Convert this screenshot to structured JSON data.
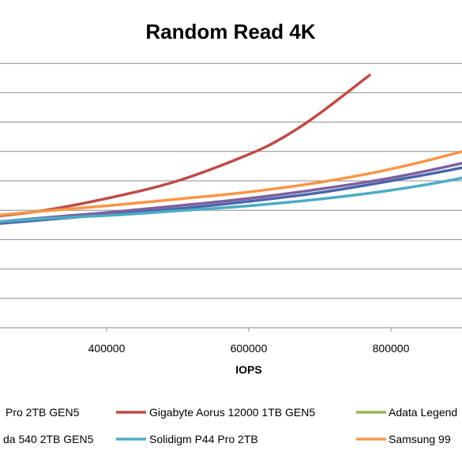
{
  "chart_data": {
    "type": "line",
    "title": "Random Read 4K",
    "xlabel": "IOPS",
    "ylabel": "",
    "x_ticks": [
      400000,
      600000,
      800000
    ],
    "y_ticks": [
      0,
      1,
      2,
      3,
      4,
      5,
      6,
      7,
      8,
      9
    ],
    "xlim": [
      250000,
      1000000
    ],
    "ylim": [
      0,
      9
    ],
    "grid": true,
    "legend_position": "bottom",
    "series": [
      {
        "name": "Pro 2TB GEN5",
        "color": "#4a66ac",
        "x": [
          200000,
          300000,
          400000,
          500000,
          600000,
          700000,
          800000,
          900000,
          1000000
        ],
        "y": [
          3.45,
          3.65,
          3.85,
          4.05,
          4.3,
          4.6,
          5.0,
          5.45,
          6.0
        ]
      },
      {
        "name": "Gigabyte Aorus 12000 1TB GEN5",
        "color": "#be4b48",
        "x": [
          200000,
          300000,
          400000,
          500000,
          600000,
          650000,
          700000,
          770000
        ],
        "y": [
          3.7,
          3.95,
          4.4,
          5.0,
          5.9,
          6.5,
          7.3,
          8.6
        ]
      },
      {
        "name": "Adata Legend",
        "color": "#98b954",
        "x": [],
        "y": []
      },
      {
        "name": "da 540 2TB GEN5",
        "color": "#7d60a0",
        "x": [
          200000,
          300000,
          400000,
          500000,
          600000,
          700000,
          800000,
          900000,
          1000000
        ],
        "y": [
          3.5,
          3.72,
          3.92,
          4.15,
          4.4,
          4.72,
          5.1,
          5.6,
          6.2
        ]
      },
      {
        "name": "Solidigm P44 Pro 2TB",
        "color": "#4bacc6",
        "x": [
          200000,
          300000,
          400000,
          500000,
          600000,
          700000,
          800000,
          900000,
          1000000
        ],
        "y": [
          3.5,
          3.7,
          3.82,
          3.98,
          4.15,
          4.38,
          4.68,
          5.1,
          5.7
        ]
      },
      {
        "name": "Samsung 99",
        "color": "#f79646",
        "x": [
          200000,
          300000,
          400000,
          500000,
          600000,
          700000,
          800000,
          900000,
          1000000
        ],
        "y": [
          3.72,
          3.95,
          4.15,
          4.38,
          4.62,
          4.95,
          5.4,
          6.0,
          6.7
        ]
      }
    ]
  }
}
